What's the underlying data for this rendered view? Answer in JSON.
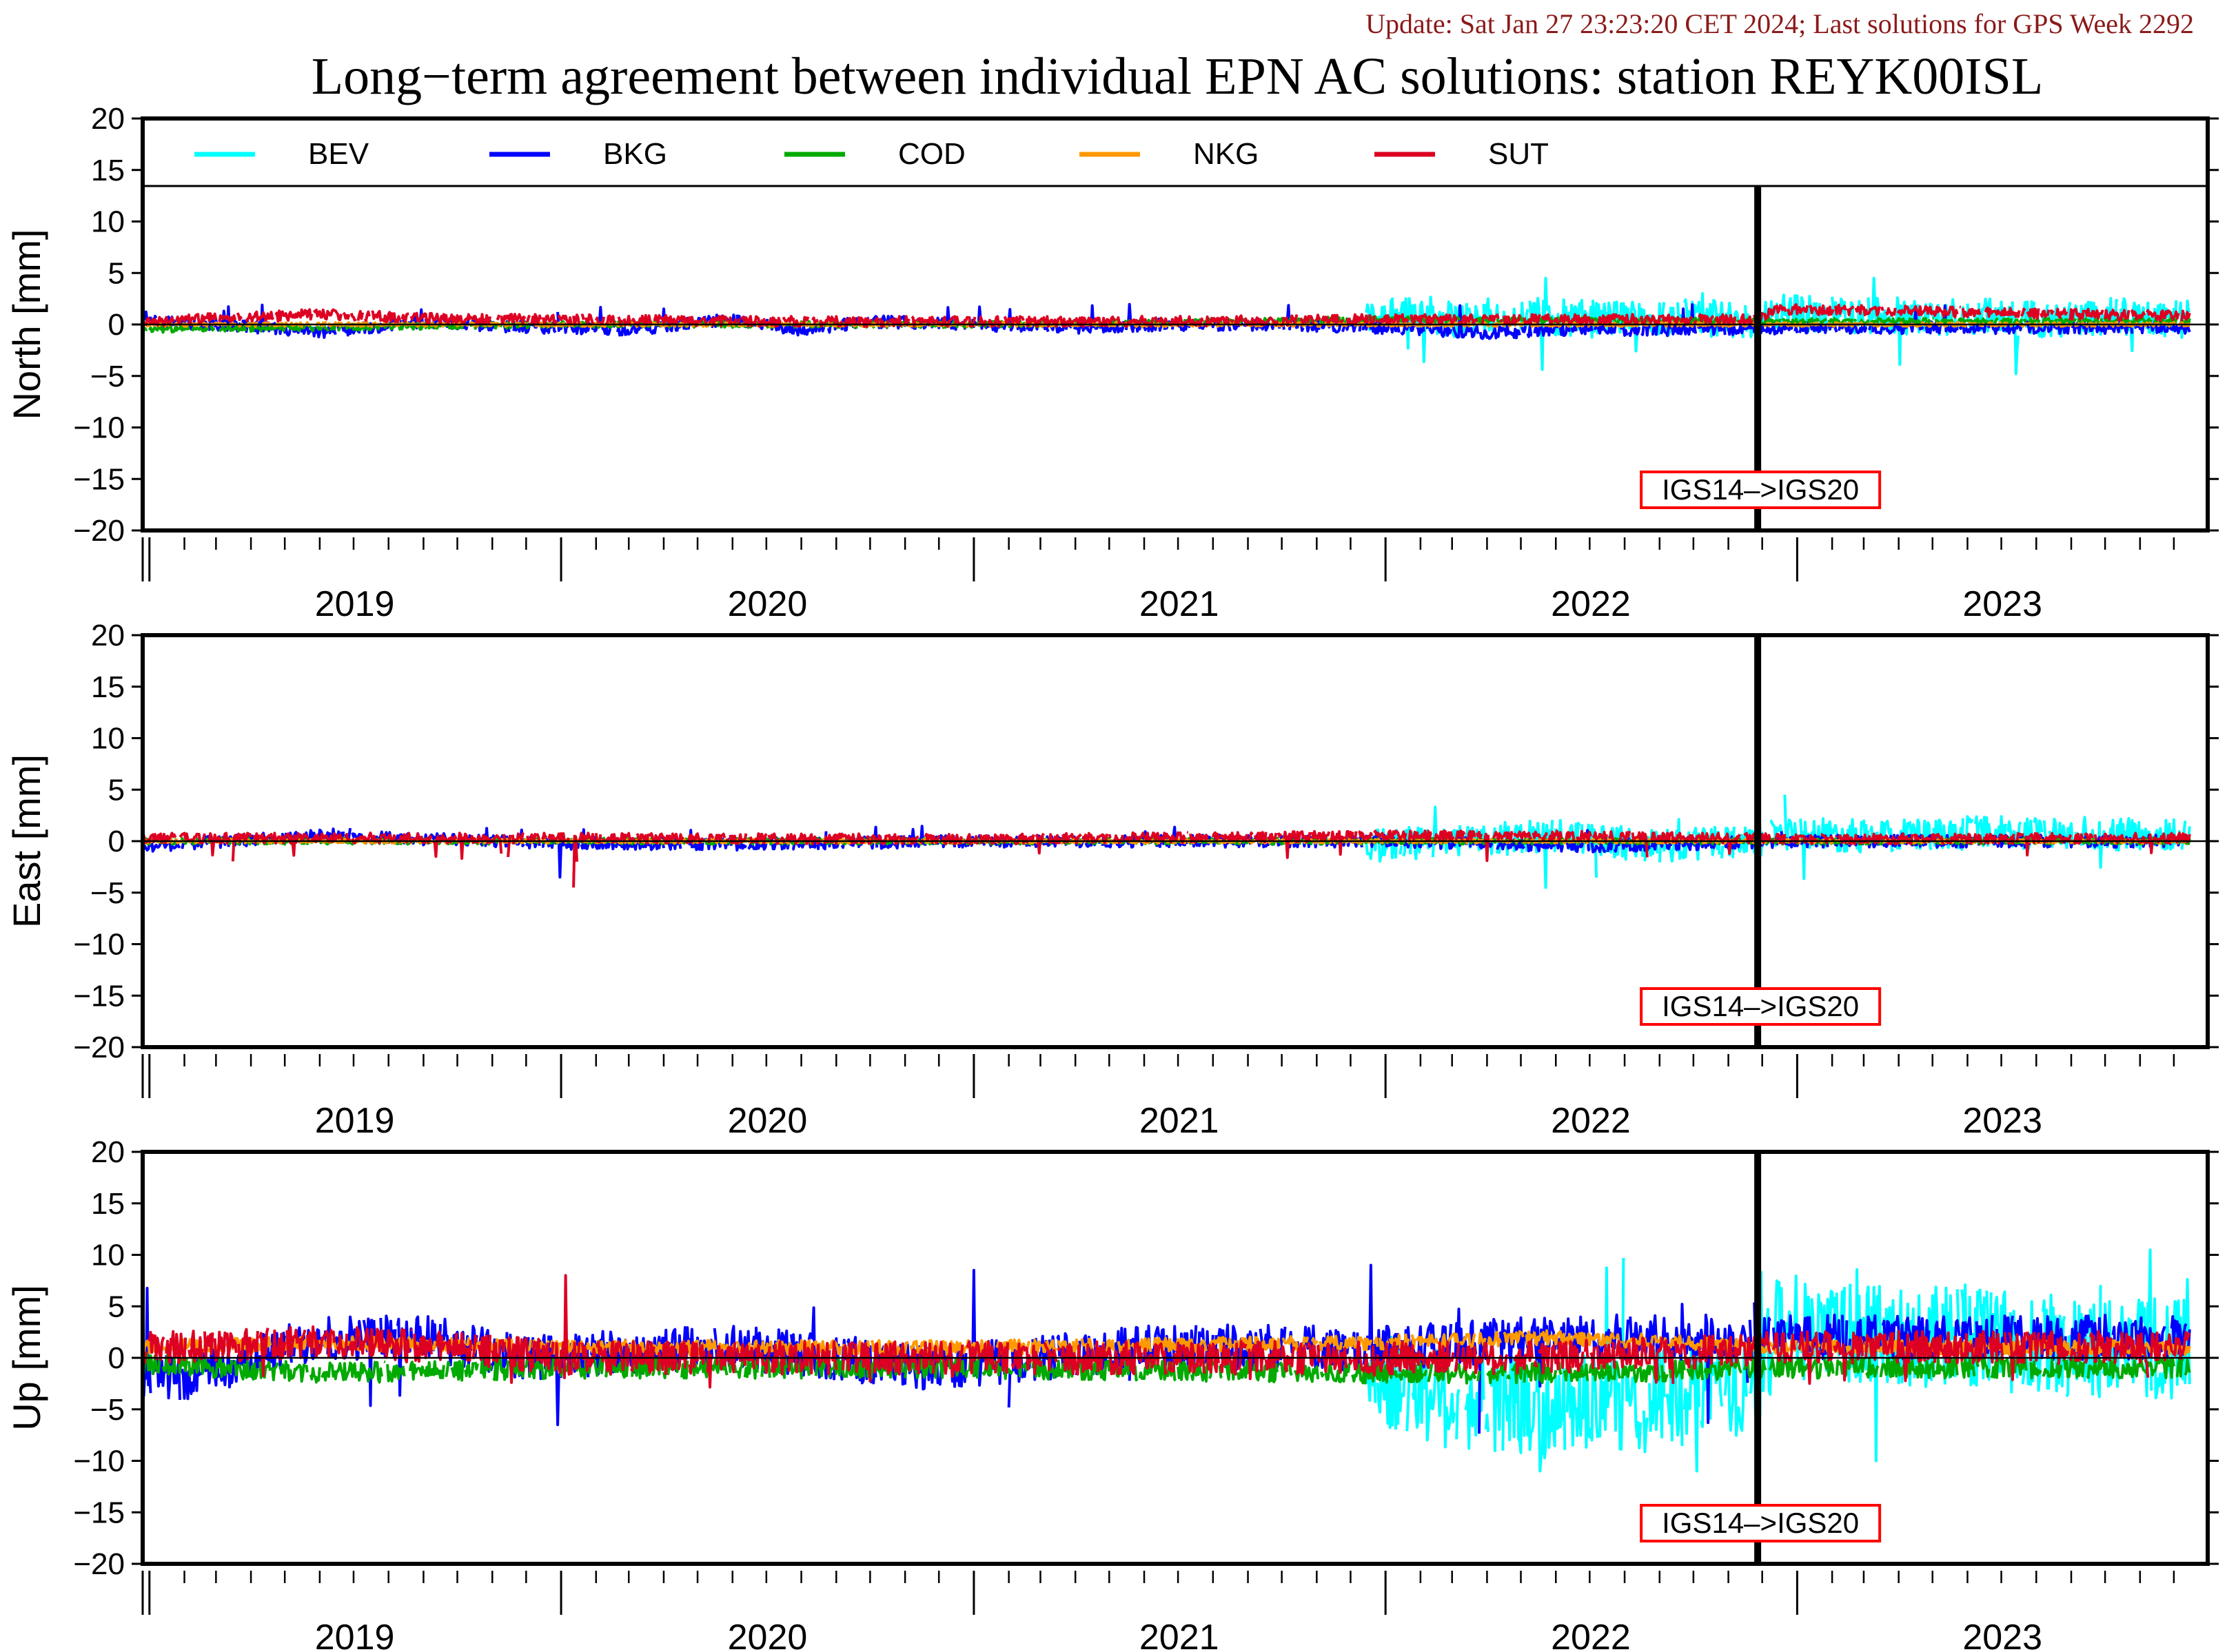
{
  "header": {
    "update_text": "Update: Sat Jan 27 23:23:20 CET 2024; Last solutions for GPS Week 2292",
    "update_color": "#8b1a1a"
  },
  "chart_data": {
    "type": "line",
    "title": "Long−term agreement between individual EPN AC solutions: station REYK00ISL",
    "x_start": "2018-12-26",
    "x_end": "2023-12-31",
    "year_labels": [
      {
        "label": "2019",
        "date": "2019-07-02"
      },
      {
        "label": "2020",
        "date": "2020-07-02"
      },
      {
        "label": "2021",
        "date": "2021-07-02"
      },
      {
        "label": "2022",
        "date": "2022-07-02"
      },
      {
        "label": "2023",
        "date": "2023-07-02"
      }
    ],
    "event": {
      "label": "IGS14–>IGS20",
      "date": "2022-11-27"
    },
    "legend": [
      {
        "name": "BEV",
        "color": "#00ffff"
      },
      {
        "name": "BKG",
        "color": "#0000ff"
      },
      {
        "name": "COD",
        "color": "#00aa00"
      },
      {
        "name": "NKG",
        "color": "#ff9900"
      },
      {
        "name": "SUT",
        "color": "#dd0022"
      }
    ],
    "panels": [
      {
        "name": "north",
        "ylabel": "North [mm]",
        "ylim": [
          -20,
          20
        ],
        "yticks": [
          20,
          15,
          10,
          5,
          0,
          -5,
          -10,
          -15,
          -20
        ],
        "has_legend": true,
        "series": [
          {
            "name": "BEV",
            "color": "#00ffff",
            "x": [
              "2021-12-15",
              "2022-01-15",
              "2022-03-01",
              "2022-05-01",
              "2022-07-01",
              "2022-09-01",
              "2022-11-01",
              "2022-11-25",
              "2022-12-15",
              "2023-02-01",
              "2023-04-01",
              "2023-06-01",
              "2023-08-01",
              "2023-10-01",
              "2023-12-15"
            ],
            "y": [
              0.5,
              1.5,
              0.5,
              1.0,
              0.5,
              0.8,
              0.5,
              0.3,
              1.2,
              1.0,
              0.8,
              0.8,
              0.5,
              0.8,
              0.5
            ],
            "noise": 1.8,
            "spikes": [
              [
                4.5,
                -3.5
              ],
              [
                3,
                -4.5
              ],
              [
                4.5,
                -5
              ]
            ]
          },
          {
            "name": "BKG",
            "color": "#0000ff",
            "x": [
              "2018-12-26",
              "2019-03-01",
              "2019-06-01",
              "2019-09-01",
              "2019-12-01",
              "2020-03-01",
              "2020-06-01",
              "2020-08-01",
              "2020-10-01",
              "2021-01-01",
              "2021-04-01",
              "2021-07-01",
              "2021-10-01",
              "2022-01-01",
              "2022-04-01",
              "2022-07-01",
              "2022-10-01",
              "2023-01-01",
              "2023-06-01",
              "2023-12-15"
            ],
            "y": [
              0.3,
              0.0,
              -0.8,
              0.3,
              -0.3,
              -0.5,
              0.5,
              -0.5,
              0.3,
              0.0,
              -0.3,
              0.0,
              0.0,
              -0.3,
              -0.8,
              -0.5,
              -0.5,
              -0.3,
              -0.3,
              -0.3
            ],
            "noise": 0.6,
            "spikes": [
              [
                -3.5,
                2
              ]
            ]
          },
          {
            "name": "COD",
            "color": "#00aa00",
            "x": [
              "2018-12-26",
              "2019-06-01",
              "2020-01-01",
              "2021-01-01",
              "2022-01-01",
              "2023-01-01",
              "2023-12-15"
            ],
            "y": [
              -0.5,
              -0.3,
              0.0,
              0.0,
              0.5,
              0.3,
              0.3
            ],
            "noise": 0.3
          },
          {
            "name": "NKG",
            "color": "#ff9900",
            "x": [
              "2018-12-26",
              "2020-01-01",
              "2021-01-01",
              "2022-01-01",
              "2023-01-01",
              "2023-12-15"
            ],
            "y": [
              0.0,
              0.0,
              0.0,
              0.0,
              0.0,
              0.0
            ],
            "noise": 0.2
          },
          {
            "name": "SUT",
            "color": "#dd0022",
            "x": [
              "2018-12-26",
              "2019-06-01",
              "2019-10-01",
              "2020-01-01",
              "2020-06-01",
              "2021-01-01",
              "2021-06-01",
              "2022-01-01",
              "2022-06-01",
              "2022-11-25",
              "2022-12-15",
              "2023-06-01",
              "2023-12-15"
            ],
            "y": [
              0.3,
              1.0,
              0.5,
              0.5,
              0.3,
              0.3,
              0.3,
              0.5,
              0.5,
              0.5,
              1.5,
              1.2,
              0.8
            ],
            "noise": 0.5
          },
          {
            "name": "zero",
            "color": "#000000",
            "x": [
              "2018-12-26",
              "2023-12-31"
            ],
            "y": [
              0,
              0
            ],
            "noise": 0
          }
        ]
      },
      {
        "name": "east",
        "ylabel": "East [mm]",
        "ylim": [
          -20,
          20
        ],
        "yticks": [
          20,
          15,
          10,
          5,
          0,
          -5,
          -10,
          -15,
          -20
        ],
        "has_legend": false,
        "series": [
          {
            "name": "BEV",
            "color": "#00ffff",
            "x": [
              "2021-12-15",
              "2022-03-01",
              "2022-06-01",
              "2022-09-01",
              "2022-11-25",
              "2022-12-15",
              "2023-03-01",
              "2023-06-01",
              "2023-09-01",
              "2023-12-15"
            ],
            "y": [
              -0.5,
              0.0,
              0.5,
              -0.5,
              0.0,
              0.8,
              0.5,
              0.8,
              0.8,
              0.5
            ],
            "noise": 1.6,
            "spikes": [
              [
                -4.5,
                3.5
              ],
              [
                4.5,
                -4.5
              ]
            ]
          },
          {
            "name": "BKG",
            "color": "#0000ff",
            "x": [
              "2018-12-26",
              "2019-06-01",
              "2020-01-01",
              "2020-06-01",
              "2021-01-01",
              "2022-01-01",
              "2022-07-01",
              "2023-01-01",
              "2023-12-15"
            ],
            "y": [
              -0.5,
              0.5,
              -0.2,
              -0.3,
              0.0,
              0.0,
              -0.5,
              0.0,
              0.0
            ],
            "noise": 0.6,
            "spikes": [
              [
                -3.5,
                1.5
              ]
            ]
          },
          {
            "name": "COD",
            "color": "#00aa00",
            "x": [
              "2018-12-26",
              "2020-01-01",
              "2021-01-01",
              "2022-01-01",
              "2023-01-01",
              "2023-12-15"
            ],
            "y": [
              0.0,
              0.0,
              0.0,
              0.0,
              0.0,
              0.0
            ],
            "noise": 0.3
          },
          {
            "name": "NKG",
            "color": "#ff9900",
            "x": [
              "2018-12-26",
              "2020-01-01",
              "2021-01-01",
              "2022-01-01",
              "2023-01-01",
              "2023-12-15"
            ],
            "y": [
              0.0,
              0.0,
              0.0,
              0.0,
              0.0,
              0.0
            ],
            "noise": 0.2
          },
          {
            "name": "SUT",
            "color": "#dd0022",
            "x": [
              "2018-12-26",
              "2019-06-01",
              "2020-01-01",
              "2021-01-01",
              "2022-01-01",
              "2022-06-01",
              "2023-01-01",
              "2023-12-15"
            ],
            "y": [
              0.3,
              0.3,
              0.3,
              0.2,
              0.5,
              0.5,
              0.2,
              0.3
            ],
            "noise": 0.5,
            "spikes": [
              [
                -4.5,
                -2
              ]
            ]
          },
          {
            "name": "zero",
            "color": "#000000",
            "x": [
              "2018-12-26",
              "2023-12-31"
            ],
            "y": [
              0,
              0
            ],
            "noise": 0
          }
        ]
      },
      {
        "name": "up",
        "ylabel": "Up [mm]",
        "ylim": [
          -20,
          20
        ],
        "yticks": [
          20,
          15,
          10,
          5,
          0,
          -5,
          -10,
          -15,
          -20
        ],
        "has_legend": false,
        "series": [
          {
            "name": "BEV",
            "color": "#00ffff",
            "x": [
              "2021-12-15",
              "2022-03-01",
              "2022-06-01",
              "2022-09-01",
              "2022-11-25",
              "2022-12-15",
              "2023-03-01",
              "2023-06-01",
              "2023-09-01",
              "2023-12-15"
            ],
            "y": [
              -2,
              -4,
              -5,
              -4,
              -3,
              3,
              2,
              2,
              1,
              1
            ],
            "noise": 5.0,
            "spikes": [
              [
                -11,
                11
              ],
              [
                -11,
                11.5
              ],
              [
                -10,
                10
              ]
            ]
          },
          {
            "name": "BKG",
            "color": "#0000ff",
            "x": [
              "2018-12-26",
              "2019-02-01",
              "2019-06-01",
              "2019-09-01",
              "2019-12-01",
              "2020-06-01",
              "2020-12-01",
              "2021-06-01",
              "2021-10-01",
              "2022-01-01",
              "2022-06-01",
              "2022-10-01",
              "2023-01-01",
              "2023-06-01",
              "2023-12-15"
            ],
            "y": [
              -2,
              -2,
              2,
              2,
              0,
              1,
              -1,
              1,
              1,
              1,
              2,
              2,
              2,
              2,
              2
            ],
            "noise": 2.2,
            "spikes": [
              [
                -6.5,
                7
              ],
              [
                8.5,
                -7.5
              ],
              [
                9,
                -4
              ]
            ]
          },
          {
            "name": "COD",
            "color": "#00aa00",
            "x": [
              "2018-12-26",
              "2019-06-01",
              "2020-01-01",
              "2021-01-01",
              "2022-01-01",
              "2022-06-01",
              "2023-01-01",
              "2023-12-15"
            ],
            "y": [
              -0.5,
              -1.5,
              -1,
              -1,
              -1.5,
              -1.5,
              -1,
              -1
            ],
            "noise": 1.0
          },
          {
            "name": "NKG",
            "color": "#ff9900",
            "x": [
              "2018-12-26",
              "2019-06-01",
              "2020-01-01",
              "2021-01-01",
              "2022-01-01",
              "2022-06-01",
              "2023-01-01",
              "2023-12-15"
            ],
            "y": [
              1,
              1.5,
              1,
              1,
              1.5,
              2,
              1,
              1
            ],
            "noise": 0.7
          },
          {
            "name": "SUT",
            "color": "#dd0022",
            "x": [
              "2018-12-26",
              "2019-06-01",
              "2019-10-01",
              "2020-01-01",
              "2020-06-01",
              "2021-01-01",
              "2021-06-01",
              "2022-01-01",
              "2022-06-01",
              "2023-01-01",
              "2023-12-15"
            ],
            "y": [
              1,
              1.5,
              1,
              0,
              0,
              0,
              0,
              0,
              0,
              1,
              1
            ],
            "noise": 1.6,
            "spikes": [
              [
                8,
                -3
              ]
            ]
          },
          {
            "name": "zero",
            "color": "#000000",
            "x": [
              "2018-12-26",
              "2023-12-31"
            ],
            "y": [
              0,
              0
            ],
            "noise": 0
          }
        ]
      }
    ]
  }
}
